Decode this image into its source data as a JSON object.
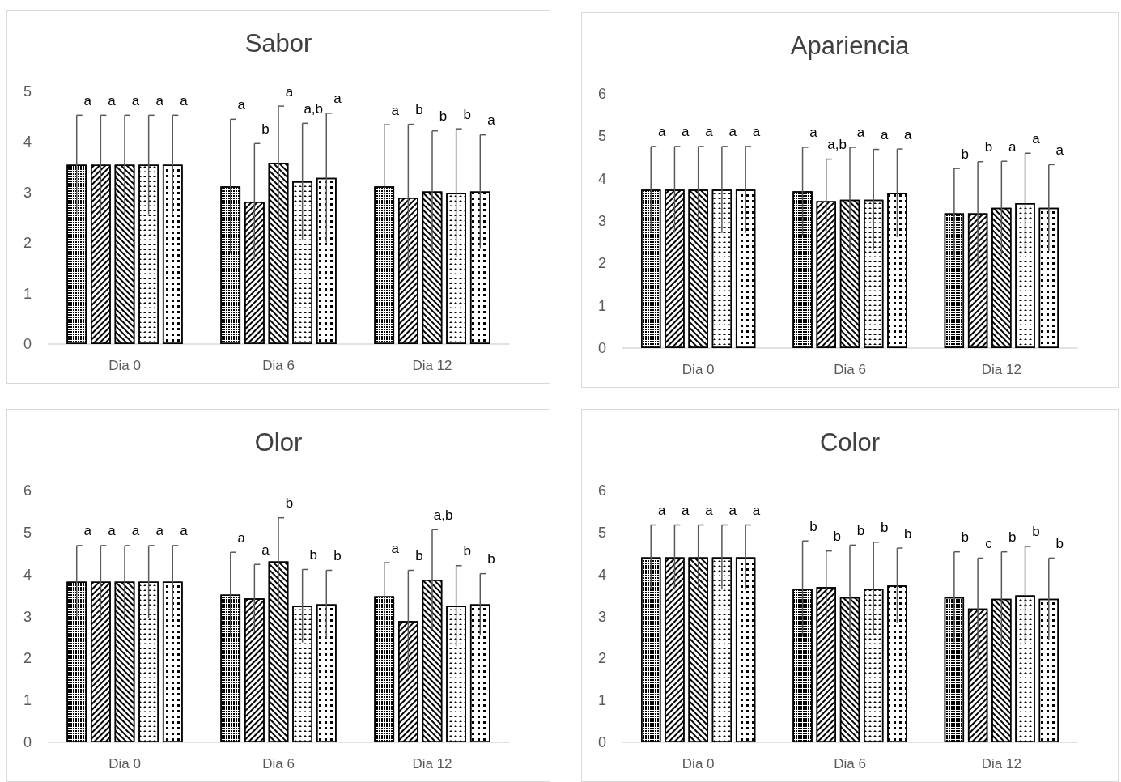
{
  "chart_data": [
    {
      "type": "bar",
      "title": "Sabor",
      "categories": [
        "Dia 0",
        "Dia 6",
        "Dia 12"
      ],
      "ylim": [
        0,
        5
      ],
      "yticks": [
        0,
        1,
        2,
        3,
        4,
        5
      ],
      "series": [
        {
          "color": "#000000",
          "values": [
            3.55,
            3.12,
            3.12
          ],
          "errors": [
            0.98,
            1.33,
            1.22
          ]
        },
        {
          "color": "#000000",
          "values": [
            3.55,
            2.82,
            2.9
          ],
          "errors": [
            0.98,
            1.15,
            1.45
          ]
        },
        {
          "color": "#000000",
          "values": [
            3.55,
            3.59,
            3.02
          ],
          "errors": [
            0.98,
            1.12,
            1.2
          ]
        },
        {
          "color": "#000000",
          "values": [
            3.55,
            3.22,
            2.99
          ],
          "errors": [
            0.98,
            1.15,
            1.27
          ]
        },
        {
          "color": "#000000",
          "values": [
            3.55,
            3.29,
            3.02
          ],
          "errors": [
            0.98,
            1.28,
            1.12
          ]
        }
      ],
      "annotations": [
        "a",
        "a",
        "a",
        "a",
        "a",
        "a",
        "b",
        "a",
        "a,b",
        "a",
        "a",
        "b",
        "b",
        "b",
        "a"
      ]
    },
    {
      "type": "bar",
      "title": "Apariencia",
      "categories": [
        "Dia 0",
        "Dia 6",
        "Dia 12"
      ],
      "ylim": [
        0,
        6
      ],
      "yticks": [
        0,
        1,
        2,
        3,
        4,
        5,
        6
      ],
      "series": [
        {
          "color": "#000000",
          "values": [
            3.74,
            3.7,
            3.18
          ],
          "errors": [
            1.02,
            1.04,
            1.06
          ]
        },
        {
          "color": "#000000",
          "values": [
            3.74,
            3.47,
            3.18
          ],
          "errors": [
            1.02,
            0.99,
            1.22
          ]
        },
        {
          "color": "#000000",
          "values": [
            3.74,
            3.5,
            3.31
          ],
          "errors": [
            1.02,
            1.24,
            1.1
          ]
        },
        {
          "color": "#000000",
          "values": [
            3.74,
            3.5,
            3.42
          ],
          "errors": [
            1.02,
            1.19,
            1.18
          ]
        },
        {
          "color": "#000000",
          "values": [
            3.74,
            3.66,
            3.31
          ],
          "errors": [
            1.02,
            1.04,
            1.02
          ]
        }
      ],
      "annotations": [
        "a",
        "a",
        "a",
        "a",
        "a",
        "a",
        "a,b",
        "a",
        "a",
        "a",
        "b",
        "b",
        "a",
        "a",
        "a"
      ]
    },
    {
      "type": "bar",
      "title": "Olor",
      "categories": [
        "Dia 0",
        "Dia 6",
        "Dia 12"
      ],
      "ylim": [
        0,
        6
      ],
      "yticks": [
        0,
        1,
        2,
        3,
        4,
        5,
        6
      ],
      "series": [
        {
          "color": "#000000",
          "values": [
            3.83,
            3.52,
            3.48
          ],
          "errors": [
            0.86,
            1.01,
            0.8
          ]
        },
        {
          "color": "#000000",
          "values": [
            3.83,
            3.43,
            2.89
          ],
          "errors": [
            0.86,
            0.81,
            1.21
          ]
        },
        {
          "color": "#000000",
          "values": [
            3.83,
            4.31,
            3.88
          ],
          "errors": [
            0.86,
            1.04,
            1.19
          ]
        },
        {
          "color": "#000000",
          "values": [
            3.83,
            3.25,
            3.25
          ],
          "errors": [
            0.86,
            0.87,
            0.96
          ]
        },
        {
          "color": "#000000",
          "values": [
            3.83,
            3.29,
            3.29
          ],
          "errors": [
            0.86,
            0.81,
            0.73
          ]
        }
      ],
      "annotations": [
        "a",
        "a",
        "a",
        "a",
        "a",
        "a",
        "a",
        "b",
        "b",
        "b",
        "a",
        "b",
        "a,b",
        "b",
        "b"
      ]
    },
    {
      "type": "bar",
      "title": "Color",
      "categories": [
        "Dia 0",
        "Dia 6",
        "Dia 12"
      ],
      "ylim": [
        0,
        6
      ],
      "yticks": [
        0,
        1,
        2,
        3,
        4,
        5,
        6
      ],
      "series": [
        {
          "color": "#000000",
          "values": [
            4.41,
            3.66,
            3.46
          ],
          "errors": [
            0.77,
            1.14,
            1.08
          ]
        },
        {
          "color": "#000000",
          "values": [
            4.41,
            3.7,
            3.19
          ],
          "errors": [
            0.77,
            0.86,
            1.2
          ]
        },
        {
          "color": "#000000",
          "values": [
            4.41,
            3.46,
            3.42
          ],
          "errors": [
            0.77,
            1.24,
            1.12
          ]
        },
        {
          "color": "#000000",
          "values": [
            4.41,
            3.66,
            3.5
          ],
          "errors": [
            0.77,
            1.11,
            1.17
          ]
        },
        {
          "color": "#000000",
          "values": [
            4.41,
            3.74,
            3.42
          ],
          "errors": [
            0.77,
            0.89,
            0.97
          ]
        }
      ],
      "annotations": [
        "a",
        "a",
        "a",
        "a",
        "a",
        "b",
        "b",
        "b",
        "b",
        "b",
        "b",
        "c",
        "b",
        "b",
        "b"
      ]
    }
  ]
}
